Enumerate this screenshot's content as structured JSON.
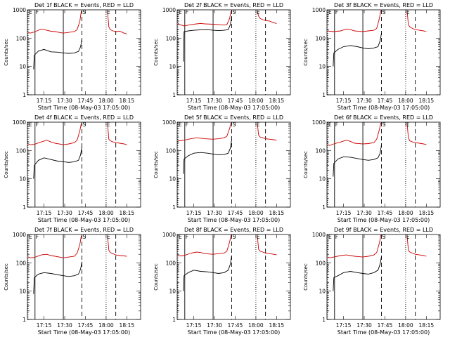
{
  "common": {
    "xlabel": "Start Time (08-May-03 17:05:00)",
    "ylabel": "Counts/sec",
    "yscale": "log",
    "ylim": [
      1,
      1000
    ],
    "y_ticks": [
      "1",
      "10",
      "100",
      "1000"
    ],
    "xlim_minutes": [
      -2,
      80
    ],
    "x_ticks": [
      {
        "label": "17:15",
        "minute": 10
      },
      {
        "label": "17:30",
        "minute": 25
      },
      {
        "label": "17:45",
        "minute": 40
      },
      {
        "label": "18:00",
        "minute": 55
      },
      {
        "label": "18:15",
        "minute": 70
      },
      {
        "label": "18:30",
        "minute": 85
      }
    ],
    "colors": {
      "events": "#000000",
      "lld": "#cc0000",
      "axes": "#000000"
    }
  },
  "chart_data": [
    {
      "type": "line",
      "title": "Det 1f BLACK = Events, RED = LLD",
      "markers": [
        {
          "label": "E",
          "minute": -1.5,
          "style": "dotted"
        },
        {
          "label": "F",
          "minute": 3.5,
          "style": "solid"
        },
        {
          "label": "",
          "minute": 24,
          "style": "solid"
        },
        {
          "label": "S",
          "minute": 37.5,
          "style": "dashed"
        },
        {
          "label": "E",
          "minute": 55,
          "style": "dotted"
        },
        {
          "label": "",
          "minute": 62,
          "style": "dashed"
        }
      ],
      "series": [
        {
          "name": "Events",
          "x": [
            2.5,
            3,
            6,
            10,
            15,
            20,
            24,
            28,
            32,
            35,
            36.5,
            37.5
          ],
          "y": [
            8,
            25,
            35,
            40,
            33,
            32,
            30,
            29,
            30,
            34,
            50,
            90
          ]
        },
        {
          "name": "LLD",
          "x": [
            -1.5,
            0,
            3,
            8,
            12,
            15,
            18,
            24,
            28,
            32,
            34,
            36,
            37
          ],
          "y": [
            160,
            150,
            165,
            210,
            190,
            175,
            170,
            150,
            160,
            170,
            200,
            400,
            900
          ]
        },
        {
          "name": "LLD",
          "x": [
            56,
            57,
            58,
            60,
            62,
            65,
            68,
            70
          ],
          "y": [
            900,
            250,
            200,
            180,
            170,
            175,
            150,
            140
          ]
        }
      ]
    },
    {
      "type": "line",
      "title": "Det 2f BLACK = Events, RED = LLD",
      "markers": [
        {
          "label": "E",
          "minute": -1.5,
          "style": "dotted"
        },
        {
          "label": "F",
          "minute": 3.5,
          "style": "solid"
        },
        {
          "label": "",
          "minute": 24,
          "style": "solid"
        },
        {
          "label": "S",
          "minute": 37.5,
          "style": "dashed"
        },
        {
          "label": "E",
          "minute": 55,
          "style": "dotted"
        },
        {
          "label": "",
          "minute": 62,
          "style": "dashed"
        }
      ],
      "series": [
        {
          "name": "Events",
          "x": [
            2.5,
            3,
            6,
            10,
            15,
            20,
            24,
            28,
            32,
            35,
            36.5,
            37.5
          ],
          "y": [
            15,
            170,
            180,
            190,
            195,
            200,
            190,
            185,
            190,
            200,
            300,
            600
          ]
        },
        {
          "name": "LLD",
          "x": [
            -1.5,
            0,
            3,
            8,
            12,
            15,
            18,
            24,
            28,
            32,
            34,
            36,
            37
          ],
          "y": [
            330,
            300,
            270,
            300,
            320,
            330,
            320,
            310,
            300,
            290,
            300,
            500,
            900
          ]
        },
        {
          "name": "LLD",
          "x": [
            56,
            57,
            58,
            60,
            62,
            65,
            68,
            70
          ],
          "y": [
            900,
            600,
            500,
            450,
            420,
            400,
            350,
            330
          ]
        }
      ]
    },
    {
      "type": "line",
      "title": "Det 3f BLACK = Events, RED = LLD",
      "markers": [
        {
          "label": "E",
          "minute": -1.5,
          "style": "dotted"
        },
        {
          "label": "F",
          "minute": 3.5,
          "style": "solid"
        },
        {
          "label": "",
          "minute": 24,
          "style": "solid"
        },
        {
          "label": "S",
          "minute": 37.5,
          "style": "dashed"
        },
        {
          "label": "E",
          "minute": 55,
          "style": "dotted"
        },
        {
          "label": "",
          "minute": 62,
          "style": "dashed"
        }
      ],
      "series": [
        {
          "name": "Events",
          "x": [
            2.5,
            3,
            6,
            10,
            15,
            20,
            24,
            28,
            32,
            35,
            36.5,
            37.5
          ],
          "y": [
            10,
            30,
            40,
            50,
            55,
            50,
            45,
            42,
            45,
            50,
            80,
            150
          ]
        },
        {
          "name": "LLD",
          "x": [
            -1.5,
            0,
            3,
            8,
            12,
            15,
            18,
            24,
            28,
            32,
            34,
            36,
            37
          ],
          "y": [
            180,
            175,
            170,
            180,
            210,
            200,
            180,
            170,
            180,
            190,
            220,
            500,
            950
          ]
        },
        {
          "name": "LLD",
          "x": [
            56,
            57,
            58,
            60,
            62,
            65,
            68,
            70
          ],
          "y": [
            950,
            300,
            250,
            220,
            200,
            190,
            180,
            170
          ]
        }
      ]
    },
    {
      "type": "line",
      "title": "Det 4f BLACK = Events, RED = LLD",
      "markers": [
        {
          "label": "E",
          "minute": -1.5,
          "style": "dotted"
        },
        {
          "label": "F",
          "minute": 3.5,
          "style": "solid"
        },
        {
          "label": "",
          "minute": 24,
          "style": "solid"
        },
        {
          "label": "S",
          "minute": 37.5,
          "style": "dashed"
        },
        {
          "label": "E",
          "minute": 55,
          "style": "dotted"
        },
        {
          "label": "",
          "minute": 62,
          "style": "dashed"
        }
      ],
      "series": [
        {
          "name": "Events",
          "x": [
            2.5,
            3,
            6,
            10,
            15,
            20,
            24,
            28,
            32,
            35,
            36.5,
            37.5
          ],
          "y": [
            10,
            30,
            45,
            55,
            48,
            42,
            40,
            38,
            40,
            45,
            70,
            140
          ]
        },
        {
          "name": "LLD",
          "x": [
            -1.5,
            0,
            3,
            8,
            12,
            15,
            18,
            24,
            28,
            32,
            34,
            36,
            37
          ],
          "y": [
            170,
            160,
            165,
            200,
            230,
            200,
            180,
            160,
            170,
            190,
            230,
            500,
            900
          ]
        },
        {
          "name": "LLD",
          "x": [
            56,
            57,
            58,
            60,
            62,
            65,
            68,
            70
          ],
          "y": [
            900,
            250,
            220,
            200,
            190,
            180,
            170,
            160
          ]
        }
      ]
    },
    {
      "type": "line",
      "title": "Det 5f BLACK = Events, RED = LLD",
      "markers": [
        {
          "label": "E",
          "minute": -1.5,
          "style": "dotted"
        },
        {
          "label": "F",
          "minute": 3.5,
          "style": "solid"
        },
        {
          "label": "",
          "minute": 24,
          "style": "solid"
        },
        {
          "label": "S",
          "minute": 37.5,
          "style": "dashed"
        },
        {
          "label": "E",
          "minute": 55,
          "style": "dotted"
        },
        {
          "label": "",
          "minute": 62,
          "style": "dashed"
        }
      ],
      "series": [
        {
          "name": "Events",
          "x": [
            2.5,
            3,
            6,
            10,
            15,
            20,
            24,
            28,
            32,
            35,
            36.5,
            37.5
          ],
          "y": [
            15,
            50,
            65,
            80,
            85,
            80,
            75,
            70,
            72,
            80,
            120,
            250
          ]
        },
        {
          "name": "LLD",
          "x": [
            -1.5,
            0,
            3,
            8,
            12,
            15,
            18,
            24,
            28,
            32,
            34,
            36,
            37
          ],
          "y": [
            230,
            220,
            230,
            260,
            280,
            270,
            260,
            250,
            260,
            280,
            320,
            600,
            950
          ]
        },
        {
          "name": "LLD",
          "x": [
            56,
            57,
            58,
            60,
            62,
            65,
            68,
            70
          ],
          "y": [
            950,
            350,
            300,
            280,
            260,
            250,
            240,
            230
          ]
        }
      ]
    },
    {
      "type": "line",
      "title": "Det 6f BLACK = Events, RED = LLD",
      "markers": [
        {
          "label": "E",
          "minute": -1.5,
          "style": "dotted"
        },
        {
          "label": "F",
          "minute": 3.5,
          "style": "solid"
        },
        {
          "label": "",
          "minute": 24,
          "style": "solid"
        },
        {
          "label": "S",
          "minute": 37.5,
          "style": "dashed"
        },
        {
          "label": "E",
          "minute": 55,
          "style": "dotted"
        },
        {
          "label": "",
          "minute": 62,
          "style": "dashed"
        }
      ],
      "series": [
        {
          "name": "Events",
          "x": [
            2.5,
            3,
            6,
            10,
            15,
            20,
            24,
            28,
            32,
            35,
            36.5,
            37.5
          ],
          "y": [
            12,
            35,
            50,
            60,
            58,
            52,
            48,
            45,
            48,
            55,
            80,
            160
          ]
        },
        {
          "name": "LLD",
          "x": [
            -1.5,
            0,
            3,
            8,
            12,
            15,
            18,
            24,
            28,
            32,
            34,
            36,
            37
          ],
          "y": [
            160,
            150,
            170,
            200,
            230,
            210,
            180,
            170,
            175,
            190,
            250,
            550,
            950
          ]
        },
        {
          "name": "LLD",
          "x": [
            56,
            57,
            58,
            60,
            62,
            65,
            68,
            70
          ],
          "y": [
            950,
            280,
            220,
            200,
            190,
            180,
            170,
            160
          ]
        }
      ]
    },
    {
      "type": "line",
      "title": "Det 7f BLACK = Events, RED = LLD",
      "markers": [
        {
          "label": "E",
          "minute": -1.5,
          "style": "dotted"
        },
        {
          "label": "F",
          "minute": 3.5,
          "style": "solid"
        },
        {
          "label": "",
          "minute": 24,
          "style": "solid"
        },
        {
          "label": "S",
          "minute": 37.5,
          "style": "dashed"
        },
        {
          "label": "E",
          "minute": 55,
          "style": "dotted"
        },
        {
          "label": "",
          "minute": 62,
          "style": "dashed"
        }
      ],
      "series": [
        {
          "name": "Events",
          "x": [
            2.5,
            3,
            6,
            10,
            15,
            20,
            24,
            28,
            32,
            35,
            36.5,
            37.5
          ],
          "y": [
            8,
            30,
            40,
            45,
            42,
            38,
            35,
            33,
            35,
            40,
            60,
            110
          ]
        },
        {
          "name": "LLD",
          "x": [
            -1.5,
            0,
            3,
            8,
            12,
            15,
            18,
            24,
            28,
            32,
            34,
            36,
            37
          ],
          "y": [
            160,
            150,
            155,
            190,
            200,
            180,
            170,
            150,
            160,
            170,
            220,
            450,
            900
          ]
        },
        {
          "name": "LLD",
          "x": [
            56,
            57,
            58,
            60,
            62,
            65,
            68,
            70
          ],
          "y": [
            900,
            280,
            230,
            210,
            190,
            180,
            175,
            170
          ]
        }
      ]
    },
    {
      "type": "line",
      "title": "Det 8f BLACK = Events, RED = LLD",
      "markers": [
        {
          "label": "E",
          "minute": -1.5,
          "style": "dotted"
        },
        {
          "label": "F",
          "minute": 3.5,
          "style": "solid"
        },
        {
          "label": "",
          "minute": 24,
          "style": "solid"
        },
        {
          "label": "S",
          "minute": 37.5,
          "style": "dashed"
        },
        {
          "label": "E",
          "minute": 55,
          "style": "dotted"
        },
        {
          "label": "",
          "minute": 62,
          "style": "dashed"
        }
      ],
      "series": [
        {
          "name": "Events",
          "x": [
            2.5,
            3,
            6,
            10,
            15,
            20,
            24,
            28,
            32,
            35,
            36.5,
            37.5
          ],
          "y": [
            10,
            35,
            45,
            55,
            50,
            48,
            45,
            42,
            45,
            55,
            90,
            180
          ]
        },
        {
          "name": "LLD",
          "x": [
            -1.5,
            0,
            3,
            8,
            12,
            15,
            18,
            24,
            28,
            32,
            34,
            36,
            37
          ],
          "y": [
            180,
            175,
            180,
            220,
            240,
            230,
            210,
            200,
            210,
            220,
            260,
            550,
            950
          ]
        },
        {
          "name": "LLD",
          "x": [
            56,
            57,
            58,
            60,
            62,
            65,
            68,
            70
          ],
          "y": [
            950,
            300,
            260,
            240,
            220,
            210,
            200,
            190
          ]
        }
      ]
    },
    {
      "type": "line",
      "title": "Det 9f BLACK = Events, RED = LLD",
      "markers": [
        {
          "label": "E",
          "minute": -1.5,
          "style": "dotted"
        },
        {
          "label": "F",
          "minute": 3.5,
          "style": "solid"
        },
        {
          "label": "",
          "minute": 24,
          "style": "solid"
        },
        {
          "label": "S",
          "minute": 37.5,
          "style": "dashed"
        },
        {
          "label": "E",
          "minute": 55,
          "style": "dotted"
        },
        {
          "label": "",
          "minute": 62,
          "style": "dashed"
        }
      ],
      "series": [
        {
          "name": "Events",
          "x": [
            2.5,
            3,
            6,
            10,
            15,
            20,
            24,
            28,
            32,
            35,
            36.5,
            37.5
          ],
          "y": [
            10,
            30,
            35,
            45,
            50,
            45,
            42,
            40,
            45,
            55,
            90,
            170
          ]
        },
        {
          "name": "LLD",
          "x": [
            -1.5,
            0,
            3,
            8,
            12,
            15,
            18,
            24,
            28,
            32,
            34,
            36,
            37
          ],
          "y": [
            160,
            150,
            160,
            180,
            190,
            180,
            170,
            160,
            170,
            190,
            230,
            500,
            950
          ]
        },
        {
          "name": "LLD",
          "x": [
            56,
            57,
            58,
            60,
            62,
            65,
            68,
            70
          ],
          "y": [
            950,
            280,
            240,
            220,
            200,
            190,
            180,
            170
          ]
        }
      ]
    }
  ]
}
